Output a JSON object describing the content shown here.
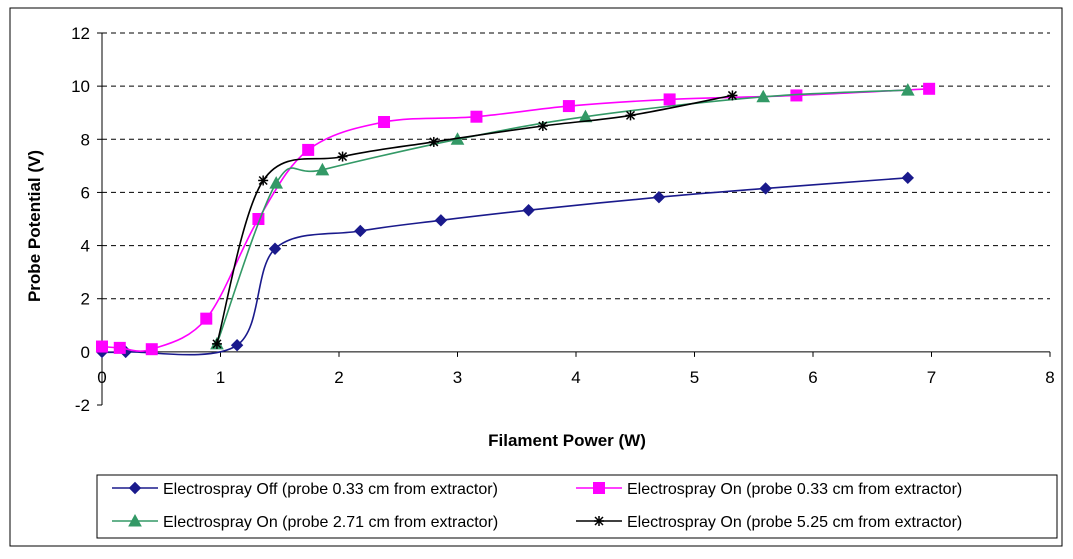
{
  "chart_data": {
    "type": "line",
    "title": "",
    "xlabel": "Filament Power (W)",
    "ylabel": "Probe Potential (V)",
    "xlim": [
      0,
      8
    ],
    "ylim": [
      -2,
      12
    ],
    "x_ticks": [
      0,
      1,
      2,
      3,
      4,
      5,
      6,
      7,
      8
    ],
    "y_ticks": [
      -2,
      0,
      2,
      4,
      6,
      8,
      10,
      12
    ],
    "grid": "horizontal dashed",
    "legend_position": "bottom",
    "series": [
      {
        "name": "Electrospray Off (probe 0.33 cm from extractor)",
        "color": "#1a1a8c",
        "marker": "diamond",
        "x": [
          0.0,
          0.2,
          1.14,
          1.46,
          2.18,
          2.86,
          3.6,
          4.7,
          5.6,
          6.8
        ],
        "y": [
          0.0,
          0.0,
          0.25,
          3.88,
          4.55,
          4.95,
          5.33,
          5.82,
          6.15,
          6.55
        ]
      },
      {
        "name": "Electrospray On (probe 0.33 cm from extractor)",
        "color": "#ff00ff",
        "marker": "square",
        "x": [
          0.0,
          0.15,
          0.42,
          0.88,
          1.32,
          1.74,
          2.38,
          3.16,
          3.94,
          4.79,
          5.86,
          6.98
        ],
        "y": [
          0.2,
          0.15,
          0.1,
          1.25,
          5.0,
          7.6,
          8.65,
          8.85,
          9.25,
          9.5,
          9.65,
          9.9
        ]
      },
      {
        "name": "Electrospray On (probe 2.71 cm from extractor)",
        "color": "#339966",
        "marker": "triangle",
        "x": [
          0.97,
          1.47,
          1.86,
          3.0,
          4.08,
          5.58,
          6.8
        ],
        "y": [
          0.3,
          6.35,
          6.85,
          8.0,
          8.85,
          9.6,
          9.85
        ]
      },
      {
        "name": "Electrospray On (probe 5.25 cm from extractor)",
        "color": "#000000",
        "marker": "star",
        "x": [
          0.97,
          1.36,
          2.03,
          2.8,
          3.72,
          4.46,
          5.32
        ],
        "y": [
          0.3,
          6.45,
          7.35,
          7.9,
          8.5,
          8.9,
          9.65
        ]
      }
    ]
  }
}
